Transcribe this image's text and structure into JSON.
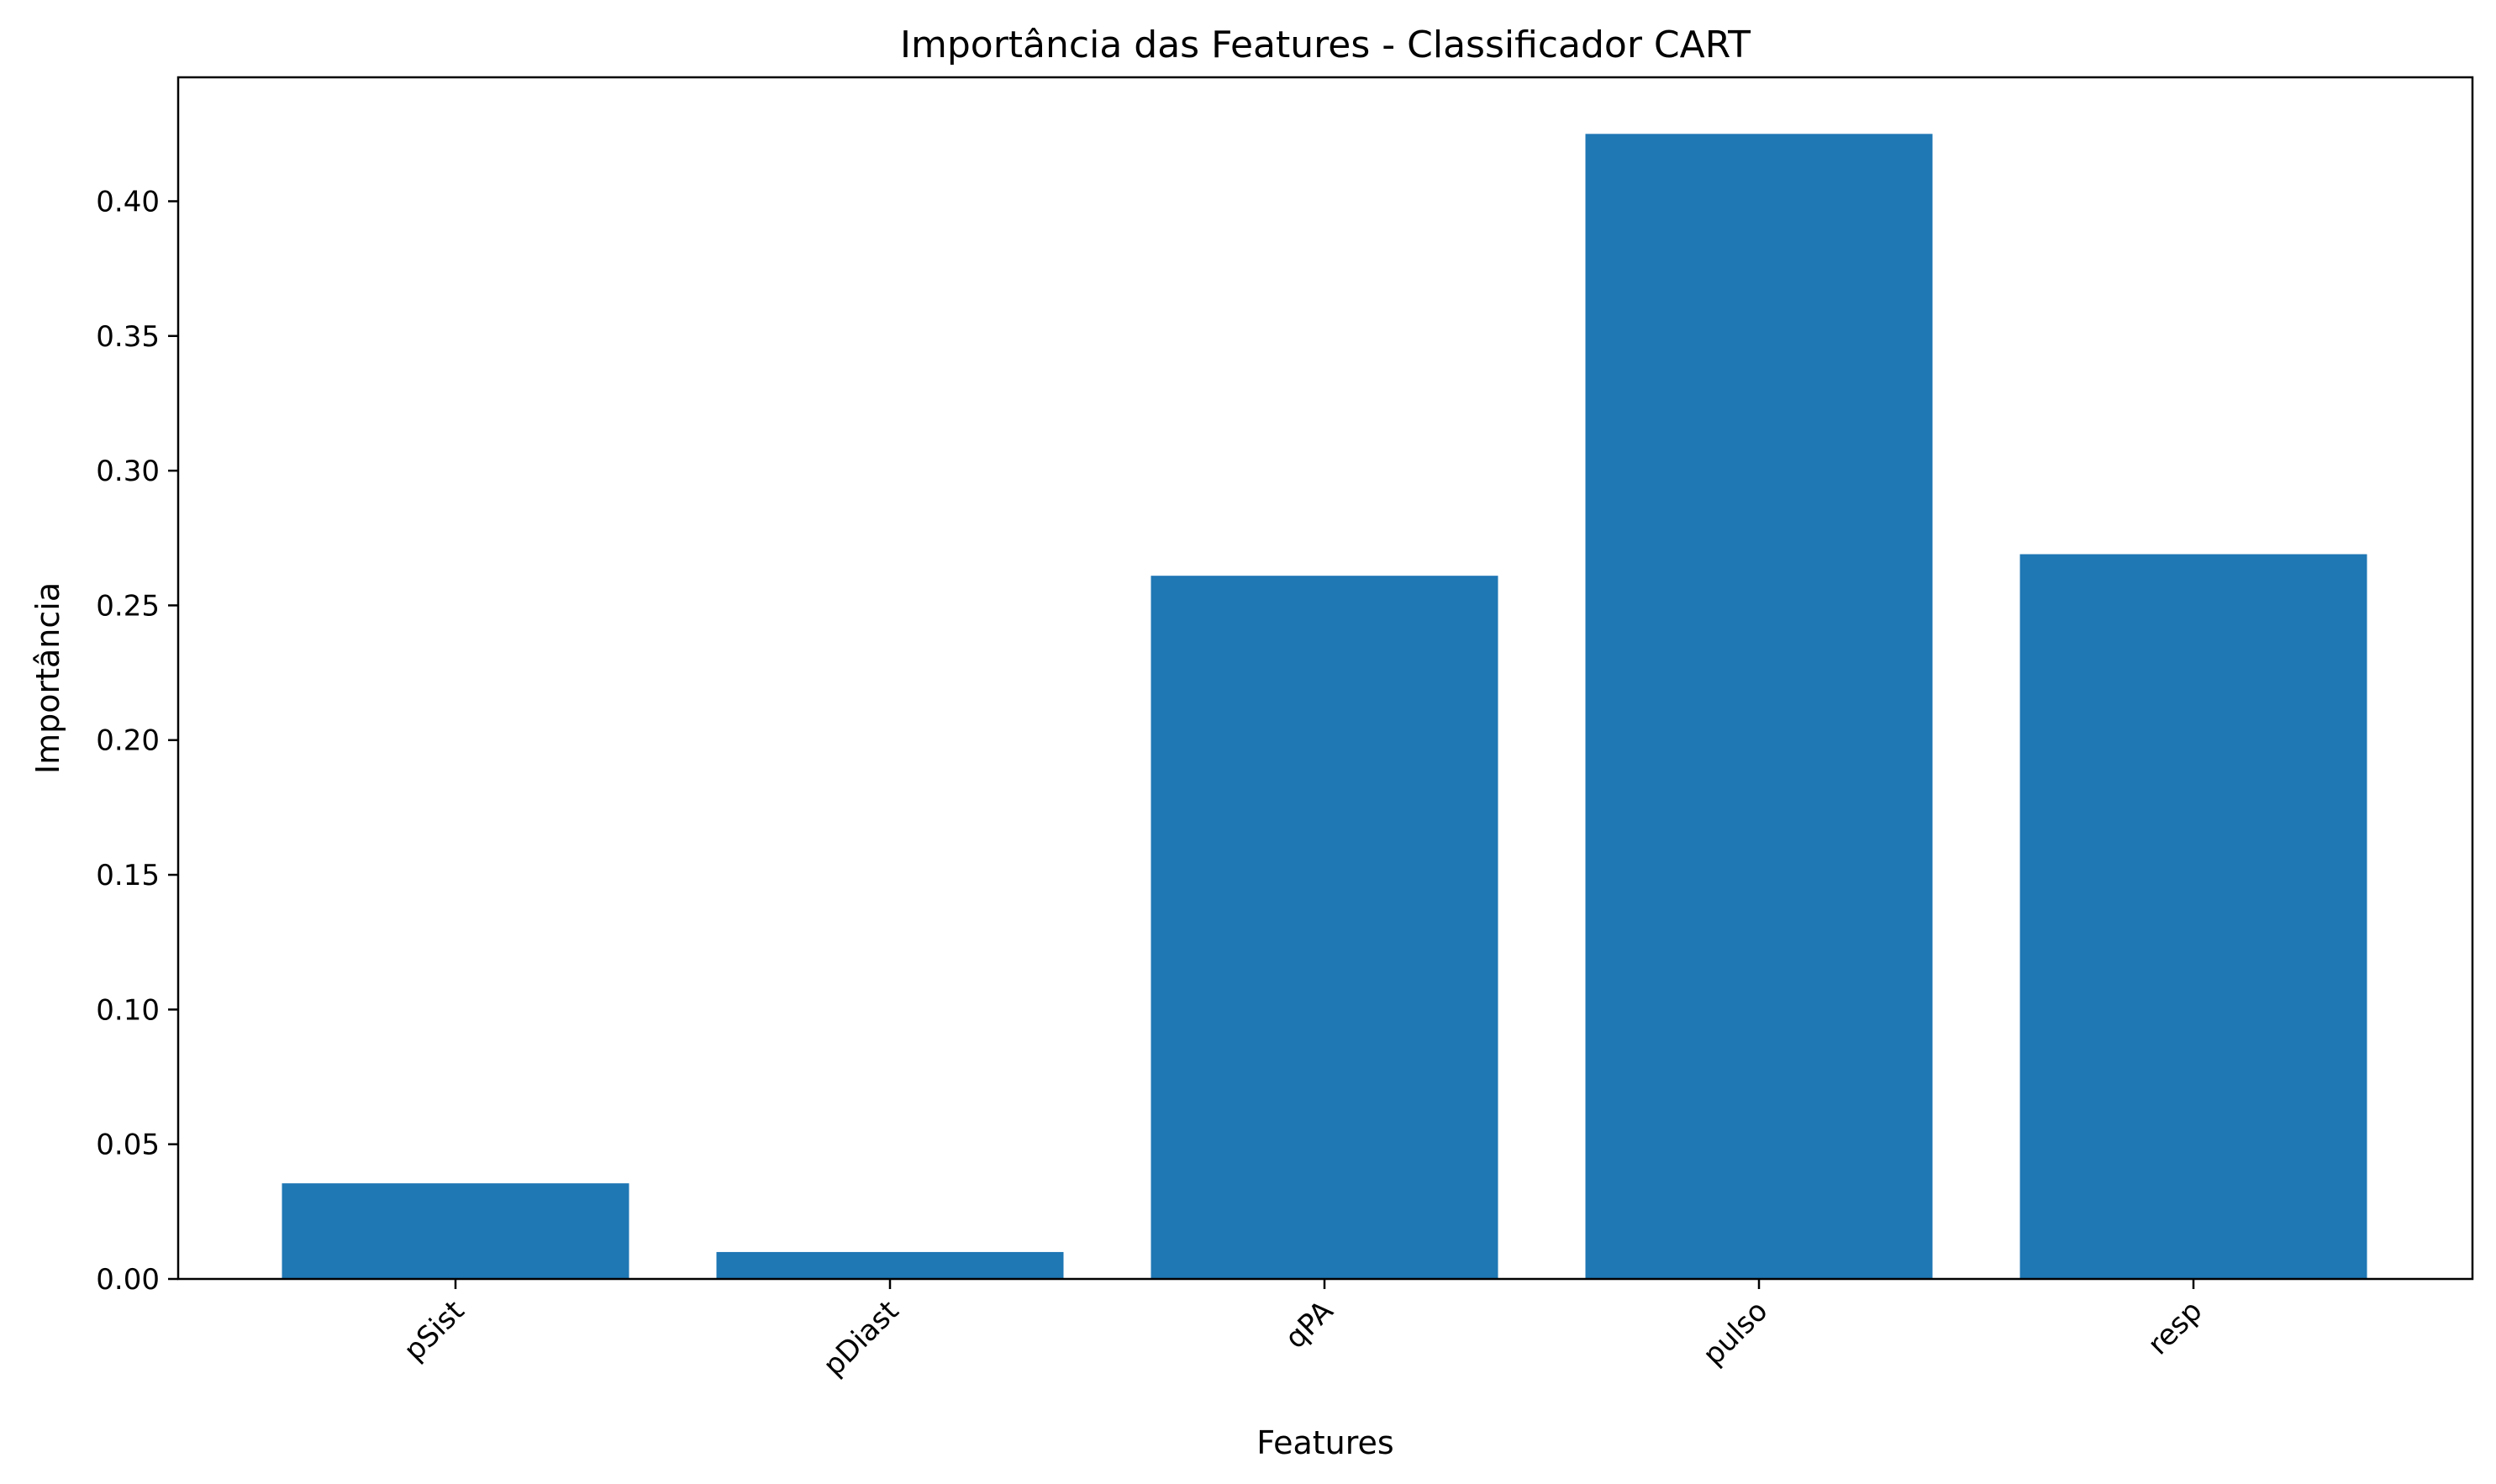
{
  "chart_data": {
    "type": "bar",
    "title": "Importância das Features - Classificador CART",
    "xlabel": "Features",
    "ylabel": "Importância",
    "categories": [
      "pSist",
      "pDiast",
      "qPA",
      "pulso",
      "resp"
    ],
    "values": [
      0.0355,
      0.01,
      0.261,
      0.425,
      0.269
    ],
    "ylim": [
      0,
      0.446
    ],
    "yticks": [
      0.0,
      0.05,
      0.1,
      0.15,
      0.2,
      0.25,
      0.3,
      0.35,
      0.4
    ],
    "ytick_labels": [
      "0.00",
      "0.05",
      "0.10",
      "0.15",
      "0.20",
      "0.25",
      "0.30",
      "0.35",
      "0.40"
    ],
    "xtick_rotation": 45,
    "grid": false,
    "legend": "none",
    "bar_color": "#1f77b4"
  }
}
